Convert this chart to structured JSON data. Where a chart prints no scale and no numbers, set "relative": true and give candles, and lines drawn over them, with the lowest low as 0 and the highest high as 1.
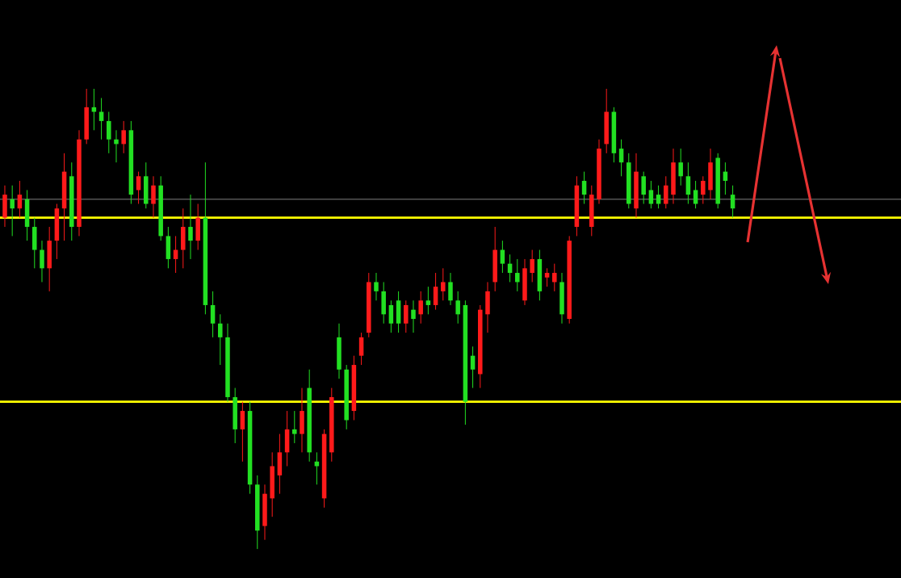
{
  "chart_data": {
    "type": "candlestick",
    "relative": true,
    "categories": [
      null,
      null,
      null,
      null,
      null,
      null,
      null,
      null,
      null,
      null,
      null,
      null,
      null,
      null,
      null,
      null,
      null,
      null,
      null,
      null,
      null,
      null,
      null,
      null,
      null,
      null,
      null,
      null,
      null,
      null,
      null,
      null,
      null,
      null,
      null,
      null,
      null,
      null,
      null,
      null,
      null,
      null,
      null,
      null,
      null,
      null,
      null,
      null,
      null,
      null,
      null,
      null,
      null,
      null,
      null,
      null,
      null,
      null,
      null,
      null,
      null,
      null,
      null,
      null,
      null,
      null,
      null,
      null,
      null,
      null,
      null,
      null,
      null,
      null,
      null,
      null,
      null,
      null,
      null,
      null,
      null,
      null,
      null,
      null,
      null,
      null,
      null,
      null,
      null,
      null,
      null,
      null,
      null,
      null,
      null,
      null,
      null,
      null,
      null
    ],
    "ohlc": [
      [
        0.72,
        0.79,
        0.7,
        0.77
      ],
      [
        0.76,
        0.79,
        0.68,
        0.74
      ],
      [
        0.74,
        0.8,
        0.72,
        0.77
      ],
      [
        0.76,
        0.78,
        0.67,
        0.7
      ],
      [
        0.7,
        0.72,
        0.61,
        0.65
      ],
      [
        0.65,
        0.67,
        0.58,
        0.61
      ],
      [
        0.61,
        0.7,
        0.56,
        0.67
      ],
      [
        0.67,
        0.75,
        0.63,
        0.74
      ],
      [
        0.74,
        0.86,
        0.67,
        0.82
      ],
      [
        0.81,
        0.84,
        0.67,
        0.7
      ],
      [
        0.7,
        0.91,
        0.68,
        0.89
      ],
      [
        0.89,
        1,
        0.88,
        0.96
      ],
      [
        0.96,
        1,
        0.91,
        0.95
      ],
      [
        0.95,
        0.98,
        0.89,
        0.93
      ],
      [
        0.93,
        0.95,
        0.86,
        0.89
      ],
      [
        0.89,
        0.91,
        0.84,
        0.88
      ],
      [
        0.88,
        0.93,
        0.86,
        0.91
      ],
      [
        0.91,
        0.93,
        0.75,
        0.77
      ],
      [
        0.78,
        0.82,
        0.75,
        0.81
      ],
      [
        0.81,
        0.84,
        0.74,
        0.75
      ],
      [
        0.75,
        0.81,
        0.72,
        0.79
      ],
      [
        0.79,
        0.81,
        0.67,
        0.68
      ],
      [
        0.68,
        0.7,
        0.61,
        0.63
      ],
      [
        0.63,
        0.68,
        0.6,
        0.65
      ],
      [
        0.65,
        0.74,
        0.61,
        0.7
      ],
      [
        0.7,
        0.77,
        0.63,
        0.67
      ],
      [
        0.67,
        0.75,
        0.65,
        0.72
      ],
      [
        0.72,
        0.84,
        0.51,
        0.53
      ],
      [
        0.53,
        0.56,
        0.46,
        0.49
      ],
      [
        0.49,
        0.51,
        0.4,
        0.46
      ],
      [
        0.46,
        0.49,
        0.32,
        0.33
      ],
      [
        0.33,
        0.35,
        0.23,
        0.26
      ],
      [
        0.26,
        0.32,
        0.19,
        0.3
      ],
      [
        0.3,
        0.32,
        0.12,
        0.14
      ],
      [
        0.14,
        0.16,
        0,
        0.04
      ],
      [
        0.05,
        0.14,
        0.02,
        0.12
      ],
      [
        0.11,
        0.21,
        0.07,
        0.18
      ],
      [
        0.16,
        0.25,
        0.12,
        0.21
      ],
      [
        0.21,
        0.3,
        0.18,
        0.26
      ],
      [
        0.26,
        0.3,
        0.23,
        0.25
      ],
      [
        0.25,
        0.35,
        0.21,
        0.3
      ],
      [
        0.35,
        0.39,
        0.19,
        0.21
      ],
      [
        0.19,
        0.21,
        0.14,
        0.18
      ],
      [
        0.11,
        0.26,
        0.09,
        0.25
      ],
      [
        0.21,
        0.35,
        0.19,
        0.33
      ],
      [
        0.46,
        0.49,
        0.37,
        0.39
      ],
      [
        0.39,
        0.4,
        0.26,
        0.28
      ],
      [
        0.3,
        0.42,
        0.28,
        0.4
      ],
      [
        0.42,
        0.47,
        0.4,
        0.46
      ],
      [
        0.47,
        0.6,
        0.46,
        0.58
      ],
      [
        0.58,
        0.6,
        0.54,
        0.56
      ],
      [
        0.56,
        0.58,
        0.49,
        0.51
      ],
      [
        0.53,
        0.54,
        0.47,
        0.49
      ],
      [
        0.54,
        0.56,
        0.47,
        0.49
      ],
      [
        0.49,
        0.54,
        0.47,
        0.53
      ],
      [
        0.52,
        0.54,
        0.47,
        0.5
      ],
      [
        0.51,
        0.56,
        0.49,
        0.54
      ],
      [
        0.54,
        0.57,
        0.51,
        0.53
      ],
      [
        0.53,
        0.6,
        0.52,
        0.57
      ],
      [
        0.56,
        0.61,
        0.54,
        0.58
      ],
      [
        0.58,
        0.6,
        0.53,
        0.54
      ],
      [
        0.54,
        0.56,
        0.49,
        0.51
      ],
      [
        0.53,
        0.54,
        0.27,
        0.32
      ],
      [
        0.42,
        0.44,
        0.35,
        0.39
      ],
      [
        0.38,
        0.53,
        0.35,
        0.52
      ],
      [
        0.51,
        0.58,
        0.47,
        0.56
      ],
      [
        0.58,
        0.7,
        0.56,
        0.65
      ],
      [
        0.65,
        0.67,
        0.6,
        0.62
      ],
      [
        0.62,
        0.64,
        0.58,
        0.6
      ],
      [
        0.6,
        0.63,
        0.56,
        0.58
      ],
      [
        0.54,
        0.63,
        0.53,
        0.61
      ],
      [
        0.6,
        0.65,
        0.58,
        0.63
      ],
      [
        0.63,
        0.65,
        0.54,
        0.56
      ],
      [
        0.59,
        0.61,
        0.57,
        0.6
      ],
      [
        0.58,
        0.62,
        0.56,
        0.6
      ],
      [
        0.58,
        0.6,
        0.49,
        0.51
      ],
      [
        0.5,
        0.68,
        0.49,
        0.67
      ],
      [
        0.7,
        0.81,
        0.68,
        0.79
      ],
      [
        0.8,
        0.82,
        0.75,
        0.77
      ],
      [
        0.7,
        0.79,
        0.68,
        0.77
      ],
      [
        0.76,
        0.89,
        0.75,
        0.87
      ],
      [
        0.88,
        1,
        0.86,
        0.95
      ],
      [
        0.95,
        0.96,
        0.84,
        0.86
      ],
      [
        0.87,
        0.89,
        0.81,
        0.84
      ],
      [
        0.84,
        0.86,
        0.74,
        0.75
      ],
      [
        0.74,
        0.86,
        0.72,
        0.82
      ],
      [
        0.81,
        0.82,
        0.75,
        0.77
      ],
      [
        0.78,
        0.8,
        0.74,
        0.75
      ],
      [
        0.77,
        0.79,
        0.74,
        0.75
      ],
      [
        0.75,
        0.81,
        0.74,
        0.79
      ],
      [
        0.77,
        0.87,
        0.75,
        0.84
      ],
      [
        0.84,
        0.87,
        0.79,
        0.81
      ],
      [
        0.81,
        0.84,
        0.75,
        0.77
      ],
      [
        0.78,
        0.8,
        0.74,
        0.75
      ],
      [
        0.77,
        0.81,
        0.75,
        0.8
      ],
      [
        0.78,
        0.87,
        0.76,
        0.84
      ],
      [
        0.85,
        0.86,
        0.74,
        0.75
      ],
      [
        0.82,
        0.84,
        0.77,
        0.8
      ],
      [
        0.77,
        0.79,
        0.72,
        0.74
      ]
    ],
    "ref_lines": [
      {
        "axis": "y",
        "value": 0.76,
        "color": "#808080"
      },
      {
        "axis": "y",
        "value": 0.72,
        "color": "#ffff00"
      },
      {
        "axis": "y",
        "value": 0.32,
        "color": "#ffff00"
      }
    ]
  }
}
